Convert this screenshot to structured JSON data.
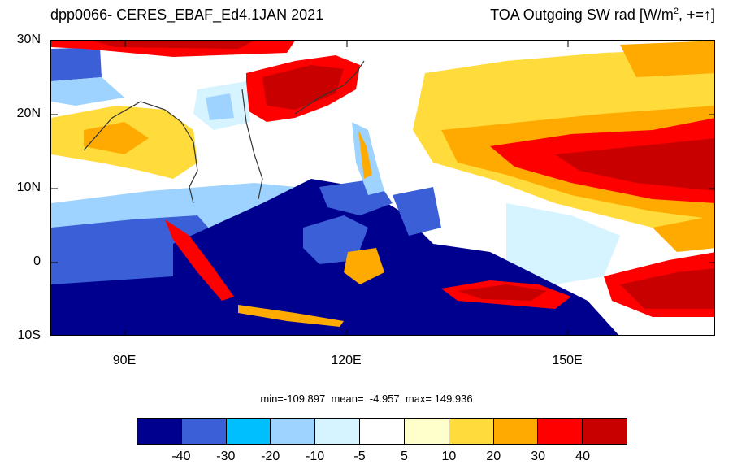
{
  "header": {
    "left_title": "dpp0066- CERES_EBAF_Ed4.1JAN 2021",
    "right_title_main": "TOA Outgoing SW rad [W/m",
    "right_title_sup": "2",
    "right_title_tail": ", +=",
    "right_title_arrow": "↑",
    "right_title_end": "]"
  },
  "map": {
    "lat_labels": [
      "30N",
      "20N",
      "10N",
      "0",
      "10S"
    ],
    "lon_labels": [
      "90E",
      "120E",
      "150E"
    ],
    "extent": {
      "lon_min": 80,
      "lon_max": 170,
      "lat_min": -10,
      "lat_max": 30
    }
  },
  "stats": {
    "text": "min=-109.897  mean=  -4.957  max= 149.936"
  },
  "colorbar": {
    "colors": [
      "#00008f",
      "#3b5fd6",
      "#00bfff",
      "#9fd3ff",
      "#d6f4ff",
      "#ffffff",
      "#ffffcc",
      "#ffdb3b",
      "#ffaa00",
      "#ff0000",
      "#c80000"
    ],
    "labels": [
      "-40",
      "-30",
      "-20",
      "-10",
      "-5",
      "5",
      "10",
      "20",
      "30",
      "40"
    ]
  }
}
